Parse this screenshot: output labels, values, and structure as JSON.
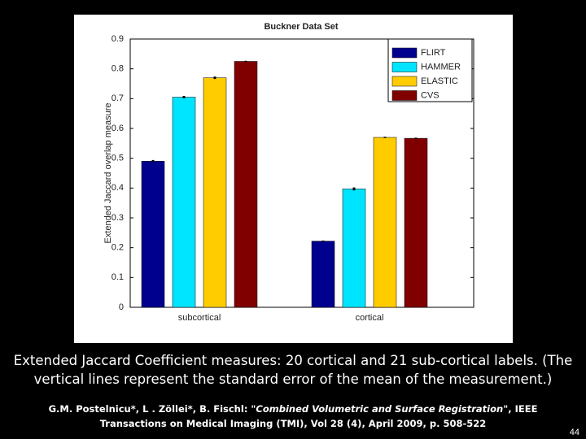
{
  "chart_data": {
    "type": "bar",
    "title": "Buckner Data Set",
    "y_label": "Extended Jaccard overlap measure",
    "categories": [
      "subcortical",
      "cortical"
    ],
    "series": [
      {
        "name": "FLIRT",
        "color": "#00008f",
        "values": [
          0.49,
          0.222
        ],
        "errors": [
          0.004,
          0.002
        ]
      },
      {
        "name": "HAMMER",
        "color": "#00e5ff",
        "values": [
          0.705,
          0.397
        ],
        "errors": [
          0.004,
          0.005
        ]
      },
      {
        "name": "ELASTIC",
        "color": "#ffcc00",
        "values": [
          0.77,
          0.57
        ],
        "errors": [
          0.004,
          0.002
        ]
      },
      {
        "name": "CVS",
        "color": "#800000",
        "values": [
          0.825,
          0.567
        ],
        "errors": [
          0.002,
          0.002
        ]
      }
    ],
    "ylim": [
      0,
      0.9
    ],
    "yticks": [
      0,
      0.1,
      0.2,
      0.3,
      0.4,
      0.5,
      0.6,
      0.7,
      0.8,
      0.9
    ],
    "grid": false,
    "legend": "top-right"
  },
  "caption": "Extended Jaccard Coefficient measures: 20 cortical and 21 sub-cortical labels. (The vertical lines represent the standard error of the mean of the measurement.)",
  "citation": {
    "authors": "G.M. Postelnicu*, L . Zöllei*, B. Fischl: ",
    "title": "\"Combined Volumetric and Surface Registration\"",
    "rest": ", IEEE Transactions on Medical Imaging (TMI), Vol 28 (4), April 2009, p. 508-522"
  },
  "page_number": "44"
}
